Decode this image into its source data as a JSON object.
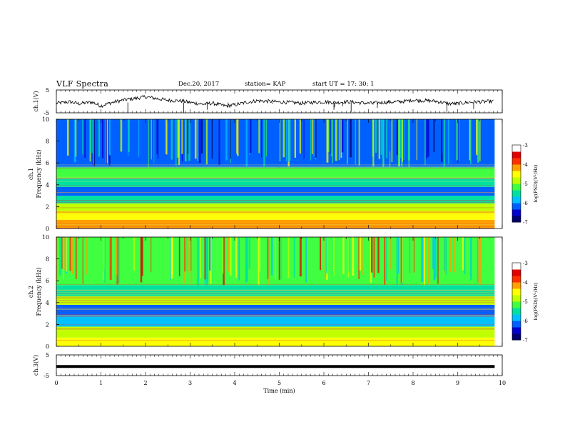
{
  "header": {
    "title": "VLF Spectra",
    "date": "Dec.20, 2017",
    "station": "station= KAP",
    "start": "start  UT =    17: 30: 1"
  },
  "chart_data": [
    {
      "type": "line",
      "panel": "ch1-waveform",
      "ylabel": "ch.1(V)",
      "ylim": [
        -5,
        5
      ],
      "yticks": [
        "5",
        "-5"
      ],
      "xlim": [
        0,
        10
      ],
      "series": [
        {
          "values": [
            {
              "x": 0.0,
              "y": -0.8
            },
            {
              "x": 0.3,
              "y": -0.2
            },
            {
              "x": 0.5,
              "y": -1.0
            },
            {
              "x": 0.8,
              "y": -0.3
            },
            {
              "x": 1.0,
              "y": -2.0
            },
            {
              "x": 1.2,
              "y": -0.7
            },
            {
              "x": 1.5,
              "y": 0.6
            },
            {
              "x": 1.8,
              "y": 1.4
            },
            {
              "x": 2.0,
              "y": 2.0
            },
            {
              "x": 2.3,
              "y": 1.1
            },
            {
              "x": 2.5,
              "y": 0.5
            },
            {
              "x": 2.8,
              "y": 0.2
            },
            {
              "x": 3.0,
              "y": -0.5
            },
            {
              "x": 3.3,
              "y": -1.2
            },
            {
              "x": 3.5,
              "y": -0.8
            },
            {
              "x": 3.8,
              "y": -2.0
            },
            {
              "x": 4.0,
              "y": -1.5
            },
            {
              "x": 4.3,
              "y": -0.3
            },
            {
              "x": 4.5,
              "y": 0.3
            },
            {
              "x": 4.8,
              "y": 0.0
            },
            {
              "x": 5.0,
              "y": -0.3
            },
            {
              "x": 5.3,
              "y": -0.5
            },
            {
              "x": 5.5,
              "y": -0.8
            },
            {
              "x": 5.8,
              "y": -0.4
            },
            {
              "x": 6.0,
              "y": -0.2
            },
            {
              "x": 6.3,
              "y": -0.5
            },
            {
              "x": 6.5,
              "y": -0.1
            },
            {
              "x": 6.8,
              "y": -0.6
            },
            {
              "x": 7.0,
              "y": -0.8
            },
            {
              "x": 7.3,
              "y": -0.5
            },
            {
              "x": 7.5,
              "y": -0.3
            },
            {
              "x": 7.8,
              "y": 0.0
            },
            {
              "x": 8.0,
              "y": 0.6
            },
            {
              "x": 8.3,
              "y": 0.3
            },
            {
              "x": 8.5,
              "y": 0.1
            },
            {
              "x": 8.8,
              "y": -1.0
            },
            {
              "x": 9.0,
              "y": -1.0
            },
            {
              "x": 9.3,
              "y": -0.3
            },
            {
              "x": 9.5,
              "y": -0.2
            },
            {
              "x": 9.8,
              "y": 0.0
            }
          ]
        }
      ]
    },
    {
      "type": "heatmap",
      "panel": "ch1-spectrogram",
      "ylabel": "ch.1 Frequency (kHz)",
      "ylim": [
        0,
        10
      ],
      "yticks": [
        "0",
        "2",
        "4",
        "6",
        "8",
        "10"
      ],
      "xlim": [
        0,
        10
      ],
      "data_end_min": 9.83,
      "bands": [
        {
          "f0": 0.0,
          "f1": 0.8,
          "level": -4.2
        },
        {
          "f0": 0.8,
          "f1": 1.6,
          "level": -4.6
        },
        {
          "f0": 1.6,
          "f1": 2.3,
          "level": -5.0
        },
        {
          "f0": 2.3,
          "f1": 3.0,
          "level": -5.4
        },
        {
          "f0": 3.0,
          "f1": 3.8,
          "level": -6.3
        },
        {
          "f0": 3.8,
          "f1": 4.6,
          "level": -5.5
        },
        {
          "f0": 4.6,
          "f1": 5.6,
          "level": -5.1
        },
        {
          "f0": 5.6,
          "f1": 10.0,
          "level": -6.1
        }
      ],
      "colorbar": {
        "label": "log(PSD)(V²/Hz)",
        "range": [
          -7,
          -3
        ],
        "ticks": [
          "-3",
          "-4",
          "-5",
          "-6",
          "-7"
        ],
        "colors": [
          "#000070",
          "#0000d0",
          "#0060ff",
          "#00c0ff",
          "#00e0a0",
          "#40ff40",
          "#c0ff00",
          "#ffff00",
          "#ffa000",
          "#ff3000",
          "#e00000",
          "#ffffff"
        ]
      }
    },
    {
      "type": "heatmap",
      "panel": "ch2-spectrogram",
      "ylabel": "ch.2 Frequency (kHz)",
      "ylim": [
        0,
        10
      ],
      "yticks": [
        "0",
        "2",
        "4",
        "6",
        "8",
        "10"
      ],
      "xlim": [
        0,
        10
      ],
      "data_end_min": 9.83,
      "bands": [
        {
          "f0": 0.0,
          "f1": 0.8,
          "level": -4.4
        },
        {
          "f0": 0.8,
          "f1": 1.8,
          "level": -5.0
        },
        {
          "f0": 1.8,
          "f1": 2.8,
          "level": -5.8
        },
        {
          "f0": 2.8,
          "f1": 3.8,
          "level": -6.3
        },
        {
          "f0": 3.8,
          "f1": 4.6,
          "level": -4.8
        },
        {
          "f0": 4.6,
          "f1": 5.6,
          "level": -5.6
        },
        {
          "f0": 5.6,
          "f1": 10.0,
          "level": -5.2
        }
      ],
      "colorbar": {
        "label": "log(PSD)(V²/Hz)",
        "range": [
          -7,
          -3
        ],
        "ticks": [
          "-3",
          "-4",
          "-5",
          "-6",
          "-7"
        ],
        "colors": [
          "#000070",
          "#0000d0",
          "#0060ff",
          "#00c0ff",
          "#00e0a0",
          "#40ff40",
          "#c0ff00",
          "#ffff00",
          "#ffa000",
          "#ff3000",
          "#e00000",
          "#ffffff"
        ]
      }
    },
    {
      "type": "line",
      "panel": "ch3-waveform",
      "ylabel": "ch.3(V)",
      "ylim": [
        -5,
        5
      ],
      "yticks": [
        "5",
        "-5"
      ],
      "xlim": [
        0,
        10
      ],
      "series": [
        {
          "values": [
            {
              "x": 0.0,
              "y": -0.6
            },
            {
              "x": 9.83,
              "y": -0.6
            }
          ]
        }
      ]
    }
  ],
  "xaxis": {
    "label": "Time  (min)",
    "ticks": [
      "0",
      "1",
      "2",
      "3",
      "4",
      "5",
      "6",
      "7",
      "8",
      "9",
      "10"
    ]
  }
}
